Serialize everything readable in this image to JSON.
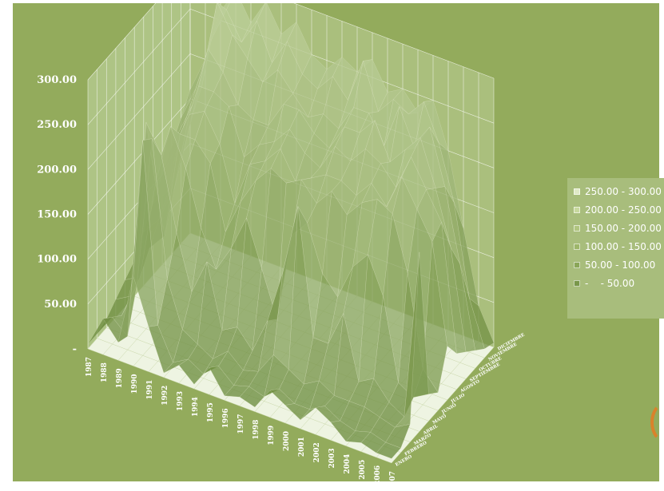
{
  "chart_data": {
    "type": "surface3d",
    "title": "",
    "ylim": [
      0,
      300
    ],
    "y_ticks": [
      "-",
      "50.00",
      "100.00",
      "150.00",
      "200.00",
      "250.00",
      "300.00"
    ],
    "x_categories": [
      "1987",
      "1988",
      "1989",
      "1990",
      "1991",
      "1992",
      "1993",
      "1994",
      "1995",
      "1996",
      "1997",
      "1998",
      "1999",
      "2000",
      "2001",
      "2002",
      "2003",
      "2004",
      "2005",
      "2006",
      "2007"
    ],
    "z_categories": [
      "ENERO",
      "FEBRERO",
      "MARZO",
      "ABRIL",
      "MAYO",
      "JUNIO",
      "JULIO",
      "AGOSTO",
      "SEPTIEMBRE",
      "OCTUBRE",
      "NOVIEMBRE",
      "DICIEMBRE"
    ],
    "series": [
      {
        "values": [
          5,
          40,
          20,
          100,
          50,
          5,
          20,
          5,
          30,
          5,
          10,
          5,
          30,
          20,
          10,
          30,
          20,
          5,
          10,
          5,
          5
        ]
      },
      {
        "values": [
          5,
          30,
          15,
          240,
          40,
          5,
          15,
          5,
          20,
          5,
          10,
          5,
          20,
          10,
          10,
          20,
          10,
          5,
          10,
          5,
          5
        ]
      },
      {
        "values": [
          10,
          20,
          60,
          230,
          80,
          30,
          20,
          10,
          25,
          10,
          15,
          40,
          30,
          20,
          30,
          20,
          20,
          20,
          15,
          10,
          20
        ]
      },
      {
        "values": [
          20,
          30,
          230,
          200,
          120,
          60,
          100,
          30,
          40,
          20,
          60,
          120,
          200,
          60,
          60,
          100,
          30,
          40,
          20,
          10,
          200
        ]
      },
      {
        "values": [
          30,
          40,
          150,
          220,
          180,
          120,
          80,
          110,
          150,
          100,
          50,
          150,
          170,
          120,
          100,
          140,
          160,
          120,
          30,
          20,
          30
        ]
      },
      {
        "values": [
          40,
          60,
          80,
          200,
          200,
          180,
          110,
          150,
          180,
          200,
          190,
          200,
          180,
          200,
          180,
          200,
          210,
          200,
          140,
          40,
          20
        ]
      },
      {
        "values": [
          60,
          80,
          120,
          210,
          220,
          190,
          130,
          180,
          190,
          210,
          180,
          190,
          200,
          200,
          190,
          210,
          190,
          230,
          200,
          170,
          60
        ]
      },
      {
        "values": [
          80,
          100,
          150,
          230,
          230,
          220,
          170,
          190,
          200,
          220,
          200,
          190,
          220,
          210,
          230,
          220,
          200,
          240,
          210,
          180,
          40
        ]
      },
      {
        "values": [
          100,
          140,
          180,
          260,
          240,
          210,
          200,
          200,
          230,
          230,
          210,
          200,
          230,
          230,
          250,
          210,
          230,
          250,
          200,
          140,
          30
        ]
      },
      {
        "values": [
          120,
          160,
          200,
          300,
          270,
          250,
          230,
          250,
          230,
          210,
          220,
          210,
          240,
          240,
          210,
          260,
          220,
          250,
          190,
          110,
          20
        ]
      },
      {
        "values": [
          140,
          180,
          240,
          280,
          250,
          280,
          240,
          270,
          240,
          230,
          250,
          230,
          280,
          230,
          250,
          240,
          260,
          220,
          160,
          60,
          10
        ]
      },
      {
        "values": [
          160,
          200,
          260,
          290,
          260,
          290,
          260,
          280,
          250,
          240,
          260,
          250,
          270,
          240,
          250,
          230,
          250,
          200,
          120,
          40,
          5
        ]
      }
    ],
    "legend": {
      "position": "right",
      "entries": [
        "250.00 - 300.00",
        "200.00 - 250.00",
        "150.00 - 200.00",
        "100.00 - 150.00",
        "50.00 - 100.00",
        "-    - 50.00"
      ],
      "colors": [
        "#dfe9c6",
        "#c7d89d",
        "#b0c57f",
        "#9db66a",
        "#8aa658",
        "#79974a"
      ]
    },
    "colors": {
      "background": "#93ab5c",
      "walls": "#b3c88c",
      "floor": "#eef4e2",
      "grid": "#ffffff",
      "surface_dark": "#6b8b3c",
      "surface_light": "#d4e2b4",
      "accent_arc": "#d9822b"
    },
    "grid": true
  }
}
